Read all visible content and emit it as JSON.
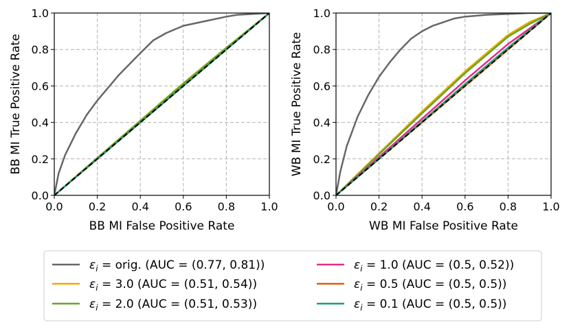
{
  "chart_data": [
    {
      "type": "line",
      "xlabel": "BB MI False Positive Rate",
      "ylabel": "BB MI True Positive Rate",
      "xlim": [
        0.0,
        1.0
      ],
      "ylim": [
        0.0,
        1.0
      ],
      "x_ticks": [
        "0.0",
        "0.2",
        "0.4",
        "0.6",
        "0.8",
        "1.0"
      ],
      "y_ticks": [
        "0.0",
        "0.2",
        "0.4",
        "0.6",
        "0.8",
        "1.0"
      ],
      "grid": true,
      "series": [
        {
          "name": "orig",
          "color": "#666666",
          "x": [
            0,
            0.02,
            0.05,
            0.1,
            0.15,
            0.2,
            0.25,
            0.3,
            0.35,
            0.4,
            0.46,
            0.52,
            0.6,
            0.7,
            0.8,
            0.85,
            1.0
          ],
          "y": [
            0,
            0.12,
            0.22,
            0.34,
            0.44,
            0.52,
            0.59,
            0.66,
            0.72,
            0.78,
            0.85,
            0.89,
            0.93,
            0.955,
            0.98,
            0.99,
            1.0
          ]
        },
        {
          "name": "3.0",
          "color": "#e6ab02",
          "x": [
            0,
            0.2,
            0.4,
            0.6,
            0.8,
            1.0
          ],
          "y": [
            0,
            0.205,
            0.41,
            0.615,
            0.81,
            1.0
          ]
        },
        {
          "name": "2.0",
          "color": "#66a61e",
          "x": [
            0,
            0.2,
            0.4,
            0.6,
            0.8,
            1.0
          ],
          "y": [
            0,
            0.205,
            0.408,
            0.612,
            0.808,
            1.0
          ]
        },
        {
          "name": "1.0",
          "color": "#e7298a",
          "x": [
            0,
            1.0
          ],
          "y": [
            0,
            1.0
          ]
        },
        {
          "name": "0.5",
          "color": "#d95f02",
          "x": [
            0,
            1.0
          ],
          "y": [
            0,
            1.0
          ]
        },
        {
          "name": "0.1",
          "color": "#1b9e77",
          "x": [
            0,
            1.0
          ],
          "y": [
            0,
            1.0
          ]
        }
      ],
      "baseline": {
        "x": [
          0,
          1.0
        ],
        "y": [
          0,
          1.0
        ]
      }
    },
    {
      "type": "line",
      "xlabel": "WB MI False Positive Rate",
      "ylabel": "WB MI True Positive Rate",
      "xlim": [
        0.0,
        1.0
      ],
      "ylim": [
        0.0,
        1.0
      ],
      "x_ticks": [
        "0.0",
        "0.2",
        "0.4",
        "0.6",
        "0.8",
        "1.0"
      ],
      "y_ticks": [
        "0.0",
        "0.2",
        "0.4",
        "0.6",
        "0.8",
        "1.0"
      ],
      "grid": true,
      "series": [
        {
          "name": "orig",
          "color": "#666666",
          "x": [
            0,
            0.02,
            0.05,
            0.1,
            0.15,
            0.2,
            0.25,
            0.3,
            0.35,
            0.4,
            0.45,
            0.5,
            0.55,
            0.6,
            0.7,
            0.8,
            0.9,
            1.0
          ],
          "y": [
            0,
            0.13,
            0.27,
            0.43,
            0.55,
            0.65,
            0.73,
            0.8,
            0.86,
            0.9,
            0.93,
            0.95,
            0.97,
            0.98,
            0.99,
            0.995,
            1.0,
            1.0
          ]
        },
        {
          "name": "3.0",
          "color": "#e6ab02",
          "x": [
            0,
            0.2,
            0.4,
            0.6,
            0.8,
            0.9,
            1.0
          ],
          "y": [
            0,
            0.23,
            0.46,
            0.68,
            0.88,
            0.95,
            1.0
          ]
        },
        {
          "name": "2.0",
          "color": "#66a61e",
          "x": [
            0,
            0.2,
            0.4,
            0.6,
            0.8,
            0.9,
            1.0
          ],
          "y": [
            0,
            0.225,
            0.45,
            0.67,
            0.87,
            0.94,
            1.0
          ]
        },
        {
          "name": "1.0",
          "color": "#e7298a",
          "x": [
            0,
            0.2,
            0.4,
            0.6,
            0.8,
            1.0
          ],
          "y": [
            0,
            0.21,
            0.42,
            0.63,
            0.83,
            1.0
          ]
        },
        {
          "name": "0.5",
          "color": "#d95f02",
          "x": [
            0,
            1.0
          ],
          "y": [
            0,
            1.0
          ]
        },
        {
          "name": "0.1",
          "color": "#1b9e77",
          "x": [
            0,
            0.2,
            0.4,
            0.6,
            0.8,
            1.0
          ],
          "y": [
            0,
            0.2,
            0.405,
            0.61,
            0.81,
            1.0
          ]
        }
      ],
      "baseline": {
        "x": [
          0,
          1.0
        ],
        "y": [
          0,
          1.0
        ]
      }
    }
  ],
  "legend": {
    "placement": "bottom-center",
    "entries": [
      {
        "series": "orig",
        "symbol": "ε",
        "sub": "i",
        "text": " = orig. (AUC = (0.77, 0.81))",
        "color": "#666666"
      },
      {
        "series": "3.0",
        "symbol": "ε",
        "sub": "i",
        "text": " = 3.0 (AUC = (0.51, 0.54))",
        "color": "#e6ab02"
      },
      {
        "series": "2.0",
        "symbol": "ε",
        "sub": "i",
        "text": " = 2.0 (AUC = (0.51, 0.53))",
        "color": "#66a61e"
      },
      {
        "series": "1.0",
        "symbol": "ε",
        "sub": "i",
        "text": " = 1.0 (AUC = (0.5, 0.52))",
        "color": "#e7298a"
      },
      {
        "series": "0.5",
        "symbol": "ε",
        "sub": "i",
        "text": " = 0.5 (AUC = (0.5, 0.5))",
        "color": "#d95f02"
      },
      {
        "series": "0.1",
        "symbol": "ε",
        "sub": "i",
        "text": " = 0.1 (AUC = (0.5, 0.5))",
        "color": "#1b9e77"
      }
    ]
  }
}
